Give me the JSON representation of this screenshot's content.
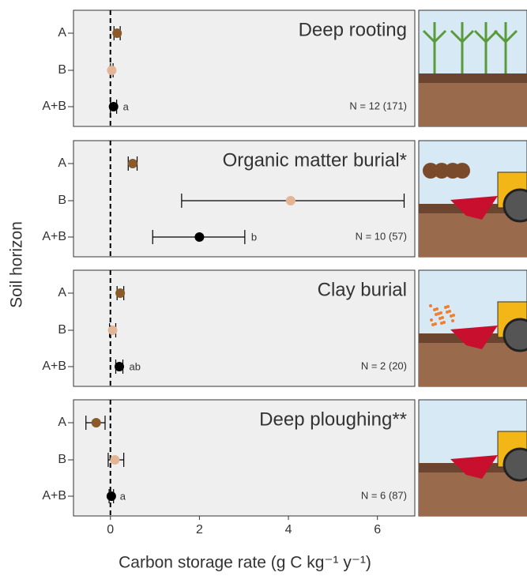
{
  "shared": {
    "xlabel": "Carbon storage rate (g C kg⁻¹ y⁻¹)",
    "ylabel": "Soil horizon",
    "xlim": [
      -0.83,
      6.84
    ],
    "xticks": [
      0,
      2,
      4,
      6
    ]
  },
  "chart_data": [
    {
      "type": "dot",
      "title": "Deep rooting",
      "annotation": "N = 12 (171)",
      "group_letter": "a",
      "categories": [
        "A",
        "B",
        "A+B"
      ],
      "values": [
        0.15,
        0.03,
        0.07
      ],
      "lower": [
        0.08,
        0.0,
        0.0
      ],
      "upper": [
        0.22,
        0.06,
        0.14
      ],
      "colors": [
        "#8b5a2b",
        "#e3b597",
        "#000000"
      ]
    },
    {
      "type": "dot",
      "title": "Organic matter burial*",
      "annotation": "N = 10 (57)",
      "group_letter": "b",
      "categories": [
        "A",
        "B",
        "A+B"
      ],
      "values": [
        0.5,
        4.05,
        2.0
      ],
      "lower": [
        0.4,
        1.6,
        0.95
      ],
      "upper": [
        0.6,
        6.6,
        3.02
      ],
      "colors": [
        "#8b5a2b",
        "#e3b597",
        "#000000"
      ]
    },
    {
      "type": "dot",
      "title": "Clay burial",
      "annotation": "N = 2 (20)",
      "group_letter": "ab",
      "categories": [
        "A",
        "B",
        "A+B"
      ],
      "values": [
        0.22,
        0.05,
        0.2
      ],
      "lower": [
        0.15,
        -0.02,
        0.12
      ],
      "upper": [
        0.3,
        0.12,
        0.28
      ],
      "colors": [
        "#8b5a2b",
        "#e3b597",
        "#000000"
      ]
    },
    {
      "type": "dot",
      "title": "Deep ploughing**",
      "annotation": "N = 6 (87)",
      "group_letter": "a",
      "categories": [
        "A",
        "B",
        "A+B"
      ],
      "values": [
        -0.32,
        0.1,
        0.02
      ],
      "lower": [
        -0.55,
        -0.05,
        -0.03
      ],
      "upper": [
        -0.12,
        0.3,
        0.07
      ],
      "colors": [
        "#8b5a2b",
        "#e3b597",
        "#000000"
      ]
    }
  ]
}
